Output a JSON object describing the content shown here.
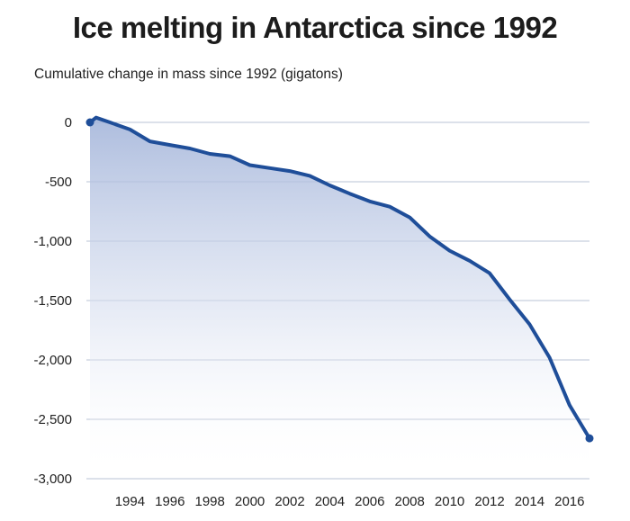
{
  "chart_data": {
    "type": "area",
    "title": "Ice melting in Antarctica since 1992",
    "ylabel": "Cumulative change in mass since 1992 (gigatons)",
    "xlabel": "",
    "ylim": [
      -3000,
      0
    ],
    "xlim": [
      1992,
      2017
    ],
    "yticks": [
      0,
      -500,
      -1000,
      -1500,
      -2000,
      -2500,
      -3000
    ],
    "ytick_labels": [
      "0",
      "-500",
      "-1,000",
      "-1,500",
      "-2,000",
      "-2,500",
      "-3,000"
    ],
    "xticks": [
      1994,
      1996,
      1998,
      2000,
      2002,
      2004,
      2006,
      2008,
      2010,
      2012,
      2014,
      2016
    ],
    "xtick_labels": [
      "1994",
      "1996",
      "1998",
      "2000",
      "2002",
      "2004",
      "2006",
      "2008",
      "2010",
      "2012",
      "2014",
      "2016"
    ],
    "grid": true,
    "series": [
      {
        "name": "Cumulative change in mass",
        "color": "#1f4e99",
        "x": [
          1992,
          1992.3,
          1993,
          1994,
          1995,
          1996,
          1997,
          1998,
          1999,
          2000,
          2001,
          2002,
          2003,
          2004,
          2005,
          2006,
          2007,
          2008,
          2009,
          2010,
          2011,
          2012,
          2013,
          2014,
          2015,
          2016,
          2017
        ],
        "y": [
          0,
          40,
          0,
          -60,
          -160,
          -190,
          -220,
          -265,
          -285,
          -360,
          -385,
          -410,
          -450,
          -530,
          -600,
          -665,
          -710,
          -800,
          -960,
          -1080,
          -1165,
          -1270,
          -1490,
          -1700,
          -1980,
          -2380,
          -2660
        ]
      }
    ]
  }
}
